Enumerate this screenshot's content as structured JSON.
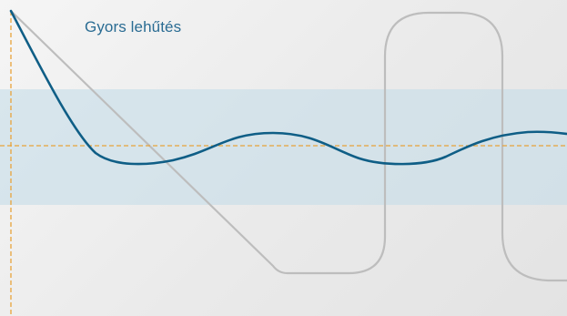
{
  "label": {
    "text": "Gyors lehűtés"
  },
  "colors": {
    "background": "#ececec",
    "band": "#c6dde8",
    "reference_line": "#e8a33a",
    "fast_cooling_curve": "#0f5e86",
    "gray_curve": "#bdbdbd",
    "label_text": "#2a6c93"
  }
}
